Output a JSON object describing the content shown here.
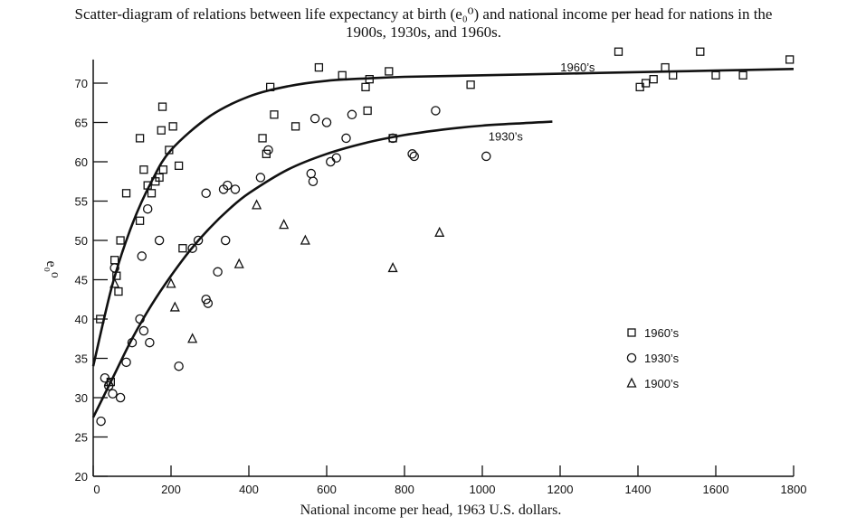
{
  "chart_data": {
    "type": "scatter",
    "title_line1": "Scatter-diagram of relations between life expectancy at birth (e₀⁰) and national income per head for nations in the",
    "title_line2": "1900s, 1930s, and 1960s.",
    "xlabel": "National income per head, 1963 U.S. dollars.",
    "ylabel": "e₀⁰",
    "xlim": [
      0,
      1800
    ],
    "ylim": [
      20,
      73
    ],
    "x_ticks": [
      0,
      200,
      400,
      600,
      800,
      1000,
      1200,
      1400,
      1600,
      1800
    ],
    "x_tick_labels": [
      "0",
      "200",
      "400",
      "600",
      "800",
      "1000",
      "1200",
      "1400",
      "1600",
      "1800"
    ],
    "y_ticks": [
      20,
      25,
      30,
      35,
      40,
      45,
      50,
      55,
      60,
      65,
      70
    ],
    "y_tick_labels": [
      "20",
      "25",
      "30",
      "35",
      "40",
      "45",
      "50",
      "55",
      "60",
      "65",
      "70"
    ],
    "grid": false,
    "legend_position": "bottom-right",
    "legend": [
      {
        "label": "1960’s",
        "marker": "square"
      },
      {
        "label": "1930’s",
        "marker": "circle"
      },
      {
        "label": "1900’s",
        "marker": "triangle"
      }
    ],
    "curve_labels": [
      {
        "text": "1960’s",
        "x": 1245,
        "y": 71.5
      },
      {
        "text": "1930’s",
        "x": 1060,
        "y": 62.7
      }
    ],
    "series": [
      {
        "name": "1960’s",
        "marker": "square",
        "points": [
          [
            18,
            40
          ],
          [
            45,
            32
          ],
          [
            55,
            47.5
          ],
          [
            60,
            45.5
          ],
          [
            65,
            43.5
          ],
          [
            70,
            50
          ],
          [
            85,
            56
          ],
          [
            120,
            52.5
          ],
          [
            120,
            63
          ],
          [
            130,
            59
          ],
          [
            140,
            57
          ],
          [
            150,
            56
          ],
          [
            160,
            57.5
          ],
          [
            170,
            58
          ],
          [
            175,
            64
          ],
          [
            178,
            67
          ],
          [
            180,
            59
          ],
          [
            195,
            61.5
          ],
          [
            205,
            64.5
          ],
          [
            220,
            59.5
          ],
          [
            230,
            49
          ],
          [
            435,
            63
          ],
          [
            445,
            61
          ],
          [
            455,
            69.5
          ],
          [
            465,
            66
          ],
          [
            520,
            64.5
          ],
          [
            580,
            72
          ],
          [
            640,
            71
          ],
          [
            700,
            69.5
          ],
          [
            705,
            66.5
          ],
          [
            710,
            70.5
          ],
          [
            760,
            71.5
          ],
          [
            770,
            63
          ],
          [
            970,
            69.8
          ],
          [
            1350,
            74
          ],
          [
            1405,
            69.5
          ],
          [
            1420,
            70
          ],
          [
            1440,
            70.5
          ],
          [
            1470,
            72
          ],
          [
            1490,
            71
          ],
          [
            1560,
            74
          ],
          [
            1600,
            71
          ],
          [
            1670,
            71
          ],
          [
            1790,
            73
          ]
        ]
      },
      {
        "name": "1930’s",
        "marker": "circle",
        "points": [
          [
            20,
            27
          ],
          [
            30,
            32.5
          ],
          [
            40,
            31.5
          ],
          [
            50,
            30.5
          ],
          [
            55,
            46.5
          ],
          [
            70,
            30
          ],
          [
            85,
            34.5
          ],
          [
            100,
            37
          ],
          [
            120,
            40
          ],
          [
            125,
            48
          ],
          [
            130,
            38.5
          ],
          [
            140,
            54
          ],
          [
            145,
            37
          ],
          [
            170,
            50
          ],
          [
            220,
            34
          ],
          [
            255,
            49
          ],
          [
            270,
            50
          ],
          [
            290,
            56
          ],
          [
            295,
            42
          ],
          [
            290,
            42.5
          ],
          [
            320,
            46
          ],
          [
            335,
            56.5
          ],
          [
            340,
            50
          ],
          [
            345,
            57
          ],
          [
            365,
            56.5
          ],
          [
            430,
            58
          ],
          [
            450,
            61.5
          ],
          [
            560,
            58.5
          ],
          [
            565,
            57.5
          ],
          [
            570,
            65.5
          ],
          [
            600,
            65
          ],
          [
            610,
            60
          ],
          [
            625,
            60.5
          ],
          [
            650,
            63
          ],
          [
            665,
            66
          ],
          [
            770,
            63
          ],
          [
            820,
            61
          ],
          [
            825,
            60.7
          ],
          [
            880,
            66.5
          ],
          [
            1010,
            60.7
          ]
        ]
      },
      {
        "name": "1900’s",
        "marker": "triangle",
        "points": [
          [
            40,
            32
          ],
          [
            55,
            44.5
          ],
          [
            200,
            44.5
          ],
          [
            210,
            41.5
          ],
          [
            255,
            37.5
          ],
          [
            375,
            47
          ],
          [
            420,
            54.5
          ],
          [
            490,
            52
          ],
          [
            545,
            50
          ],
          [
            770,
            46.5
          ],
          [
            890,
            51
          ]
        ]
      }
    ],
    "fitted_curves": [
      {
        "name": "1960’s",
        "x": [
          0,
          50,
          100,
          150,
          200,
          300,
          400,
          500,
          600,
          700,
          800,
          1000,
          1200,
          1400,
          1600,
          1800
        ],
        "y": [
          34,
          44.5,
          52,
          57.5,
          61.5,
          65.8,
          68.3,
          69.6,
          70.3,
          70.6,
          70.8,
          71.0,
          71.2,
          71.4,
          71.6,
          71.8
        ]
      },
      {
        "name": "1930’s",
        "x": [
          0,
          50,
          100,
          150,
          200,
          250,
          300,
          350,
          400,
          500,
          600,
          700,
          800,
          900,
          1000,
          1100,
          1180
        ],
        "y": [
          27.5,
          32.5,
          37.5,
          41.8,
          45.5,
          48.8,
          51.6,
          54,
          56,
          59,
          61,
          62.4,
          63.4,
          64.1,
          64.6,
          64.9,
          65.1
        ]
      }
    ]
  }
}
